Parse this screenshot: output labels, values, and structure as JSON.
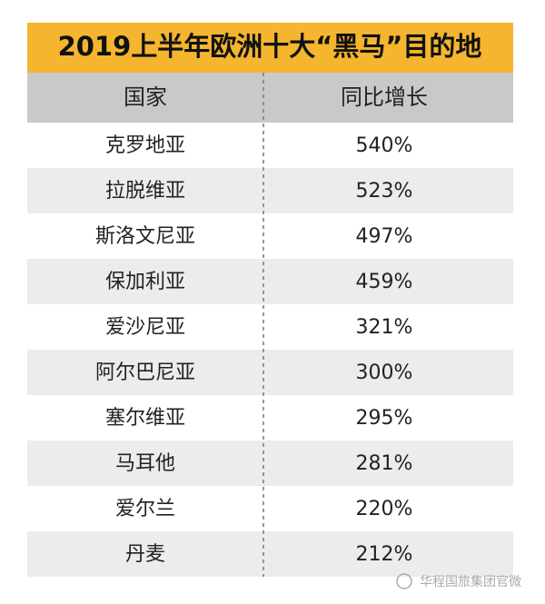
{
  "title": "2019上半年欧洲十大“黑马”目的地",
  "table": {
    "header": [
      "国家",
      "同比增长"
    ],
    "rows": [
      [
        "克罗地亚",
        "540%"
      ],
      [
        "拉脱维亚",
        "523%"
      ],
      [
        "斯洛文尼亚",
        "497%"
      ],
      [
        "保加利亚",
        "459%"
      ],
      [
        "爱沙尼亚",
        "321%"
      ],
      [
        "阿尔巴尼亚",
        "300%"
      ],
      [
        "塞尔维亚",
        "295%"
      ],
      [
        "马耳他",
        "281%"
      ],
      [
        "爱尔兰",
        "220%"
      ],
      [
        "丹麦",
        "212%"
      ]
    ]
  },
  "watermark": "华程国旅集团官微"
}
